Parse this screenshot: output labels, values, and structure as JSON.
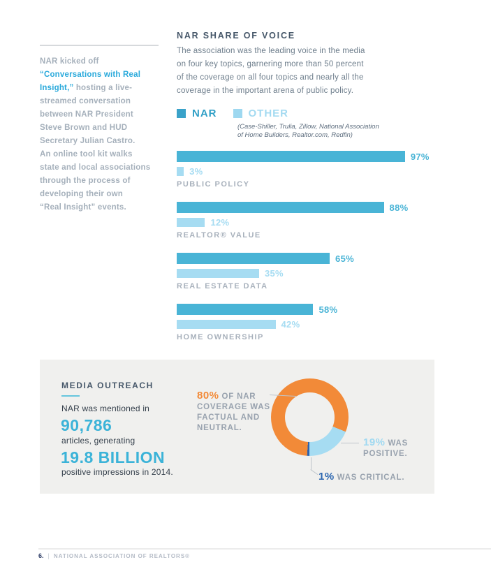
{
  "colors": {
    "nar_teal": "#49b4d6",
    "other_light_blue": "#a6dcf2",
    "legend_nar": "#3aa2c9",
    "legend_other": "#9ed8f0",
    "orange": "#f28a38",
    "critical_blue": "#2e62ad",
    "heading": "#47586a",
    "stat_teal": "#3bb3d8",
    "panel_bg": "#f0f0ee",
    "link_blue": "#29a9db"
  },
  "sidebar": {
    "intro_gray": "NAR kicked off\n",
    "intro_blue": "“Conversations with Real\nInsight,”",
    "intro_rest": " hosting a live-\nstreamed conversation\nbetween NAR President\nSteve Brown and HUD\nSecretary Julian Castro.\nAn online tool kit walks\nstate and local associations\nthrough the process of\ndeveloping their own\n“Real Insight” events."
  },
  "share_of_voice": {
    "title": "NAR SHARE OF VOICE",
    "intro": "The association was the leading voice in the media\non four key topics, garnering more than 50 percent\nof the coverage on all four topics and nearly all the\ncoverage in the important arena of public policy.",
    "legend": {
      "nar": "NAR",
      "other": "OTHER",
      "note": "(Case-Shiller, Trulia, Zillow, National Association\nof Home Builders, Realtor.com, Redfin)"
    }
  },
  "chart_data": [
    {
      "type": "bar",
      "orientation": "horizontal",
      "title": "NAR SHARE OF VOICE",
      "categories": [
        "PUBLIC POLICY",
        "REALTOR® VALUE",
        "REAL ESTATE DATA",
        "HOME OWNERSHIP"
      ],
      "series": [
        {
          "name": "NAR",
          "color": "#49b4d6",
          "values": [
            97,
            88,
            65,
            58
          ]
        },
        {
          "name": "OTHER",
          "color": "#a6dcf2",
          "values": [
            3,
            12,
            35,
            42
          ]
        }
      ],
      "value_suffix": "%",
      "xlim": [
        0,
        100
      ],
      "legend_position": "top",
      "grid": false
    },
    {
      "type": "pie",
      "donut": true,
      "start_deg": 112,
      "slices": [
        {
          "label": "19% WAS POSITIVE.",
          "value": 19,
          "color": "#a6dcf2"
        },
        {
          "label": "1% WAS CRITICAL.",
          "value": 1,
          "color": "#2e62ad"
        },
        {
          "label": "80% OF NAR COVERAGE WAS FACTUAL AND NEUTRAL.",
          "value": 80,
          "color": "#f28a38"
        }
      ],
      "legend_position": "none"
    }
  ],
  "media_outreach": {
    "title": "MEDIA OUTREACH",
    "line1": "NAR was mentioned in",
    "stat1": "90,786",
    "line2": "articles, generating",
    "stat2": "19.8 BILLION",
    "line3": "positive impressions in 2014.",
    "donut_labels": {
      "factual_pct": "80%",
      "factual_rest": " OF NAR\nCOVERAGE WAS\nFACTUAL AND\nNEUTRAL.",
      "positive_pct": "19%",
      "positive_rest": " WAS\nPOSITIVE.",
      "critical_pct": "1%",
      "critical_rest": " WAS CRITICAL."
    }
  },
  "footer": {
    "page_number": "6.",
    "separator": "|",
    "text": "NATIONAL ASSOCIATION OF REALTORS®"
  }
}
